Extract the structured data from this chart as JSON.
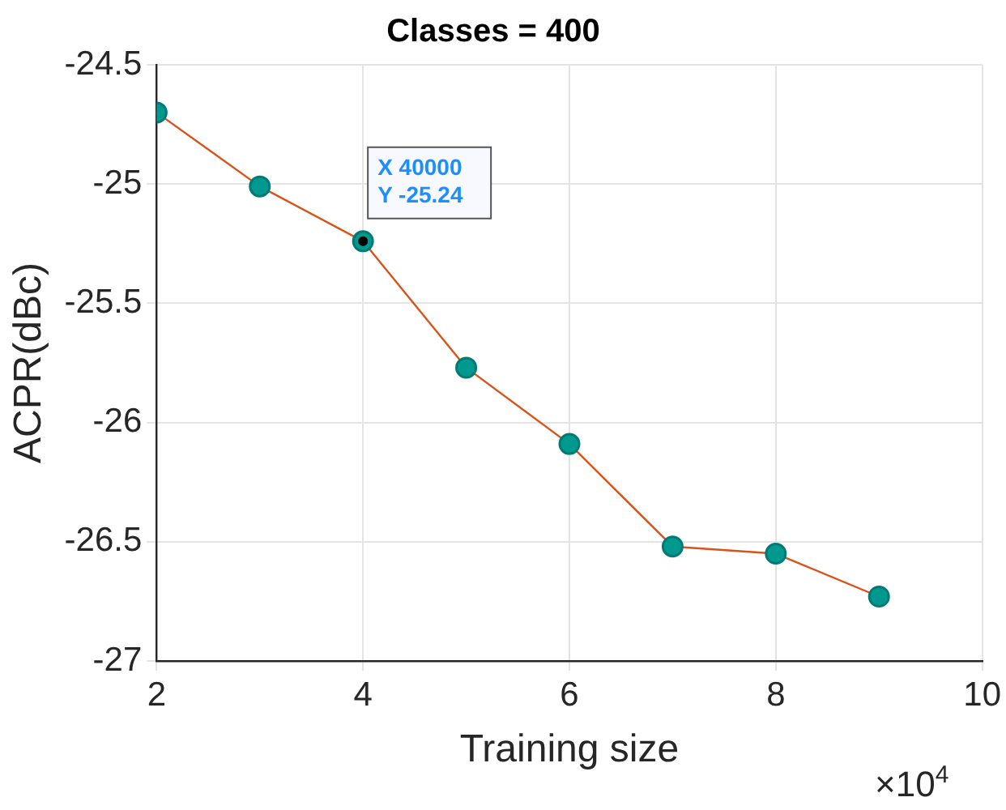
{
  "chart_data": {
    "type": "line",
    "title": "Classes = 400",
    "xlabel": "Training size",
    "ylabel": "ACPR(dBc)",
    "x": [
      2,
      3,
      4,
      5,
      6,
      7,
      8,
      9
    ],
    "series": [
      {
        "color": "#d95319",
        "colors": [
          "#00998f",
          "#00998f",
          "#00998f",
          "#00998f",
          "#00998f",
          "#00998f",
          "#00998f",
          "#00998f"
        ],
        "values": [
          -24.7,
          -25.01,
          -25.24,
          -25.77,
          -26.09,
          -26.52,
          -26.55,
          -26.73
        ]
      }
    ],
    "xlim": [
      2,
      10
    ],
    "xticks": [
      2,
      4,
      6,
      8,
      10
    ],
    "ylim": [
      -27,
      -24.5
    ],
    "yticks": [
      -27,
      -26.5,
      -26,
      -25.5,
      -25,
      -24.5
    ],
    "grid": true,
    "legend": false,
    "marker": "circle",
    "line_style": "solid",
    "annotations": [
      "×10$^{4}$",
      {
        "text": "X 40000",
        "x": 4,
        "y": -25.24
      },
      {
        "text": "Y -25.24",
        "x": 4,
        "y": -25.24
      }
    ]
  }
}
